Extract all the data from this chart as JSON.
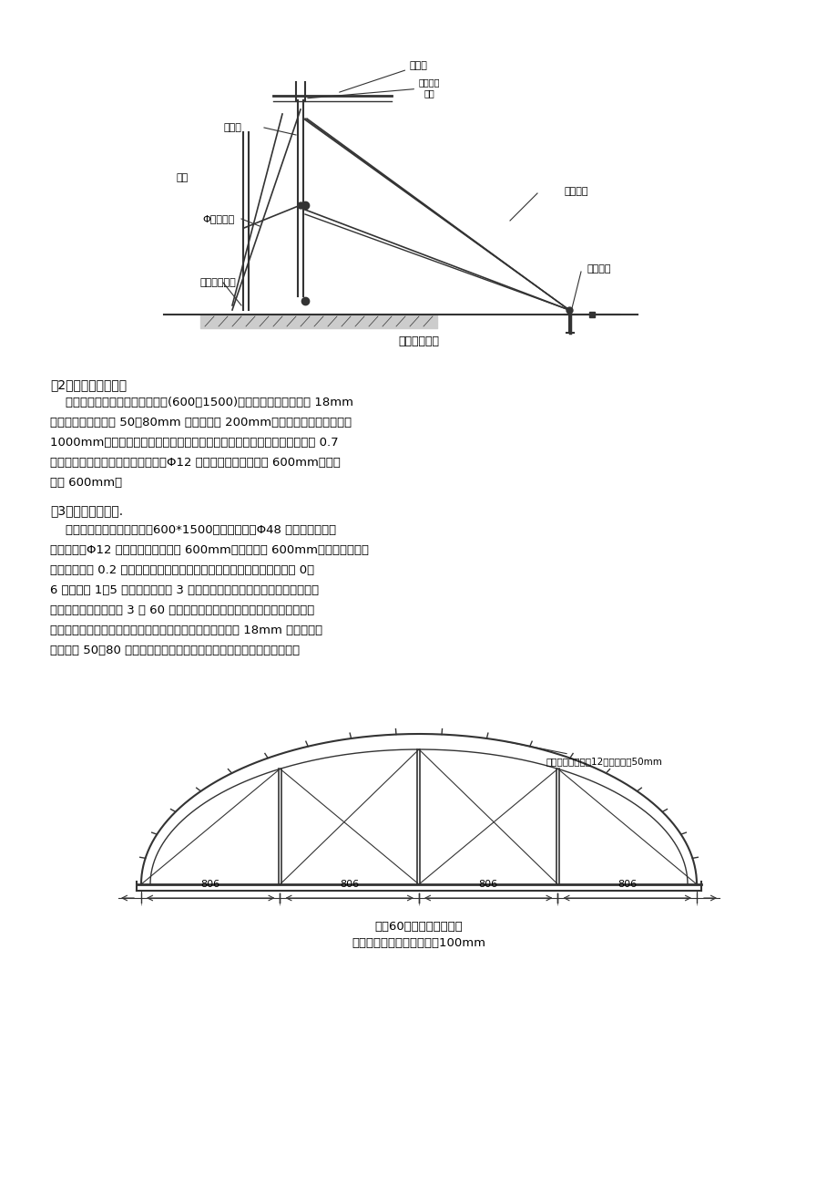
{
  "bg_color": "#ffffff",
  "text_color": "#000000",
  "line_color": "#333333",
  "page_width": 9.2,
  "page_height": 13.02,
  "title1_caption": "底板模板支设",
  "section2_title": "（2）输水管涵洞模板",
  "section2_body": "    内模墙高２．５米用中型钢模板(600＊1500)，胶角及顶部模板使用 18mm\n厚木胶合板，板带用 50＊80mm 方木，间距 200mm，使用双钢管托梁，间距\n1000mm。顶板支撑架使用承重钢管脚手架，立杆纵向间距１米，横向间距 0.7\n米，步距１．５米。内、外模的使用Φ12 钢筋对拉，垂直向间距 600mm，水平\n间距 600mm。",
  "section3_title": "（3）泄水涵洞模板.",
  "section3_body": "    内墙侧模使用中型钢模板（600*1500），围令使用Φ48 钢管加固。内、\n外模的使用Φ12 钢筋对拉，上下间距 600mm，水平间距 600mm。底部第一道对\n拉螺杆距地面 0.2 米。顶部支撑搭设承重脚手架，脚手架立杆纵横向间距 0。\n6 米，步距 1．5 米，沿纵向每隔 3 米搭设剪刀撑一道。圆弧部分使用钢管曲\n弧，根据弧顶半径制作 3 个 60 度圆弧，圆弧拼接后成为顶部拱顶支撑架，通\n过钢管连接到承重脚手架（圆弧架见下图）。顶部模板采用 18mm 厚胶合板，\n板带使用 50＊80 木方，木方使用扎丝绑扎在圆弧钢管脚手架的支托处。",
  "arch_caption1": "单个60度，三个拼成半圆",
  "arch_caption2": "圆弧半径根据拱顶半径缩小100mm",
  "arch_annotation": "木方固定点，直径12钢筋头长度50mm",
  "dim_806": "806"
}
